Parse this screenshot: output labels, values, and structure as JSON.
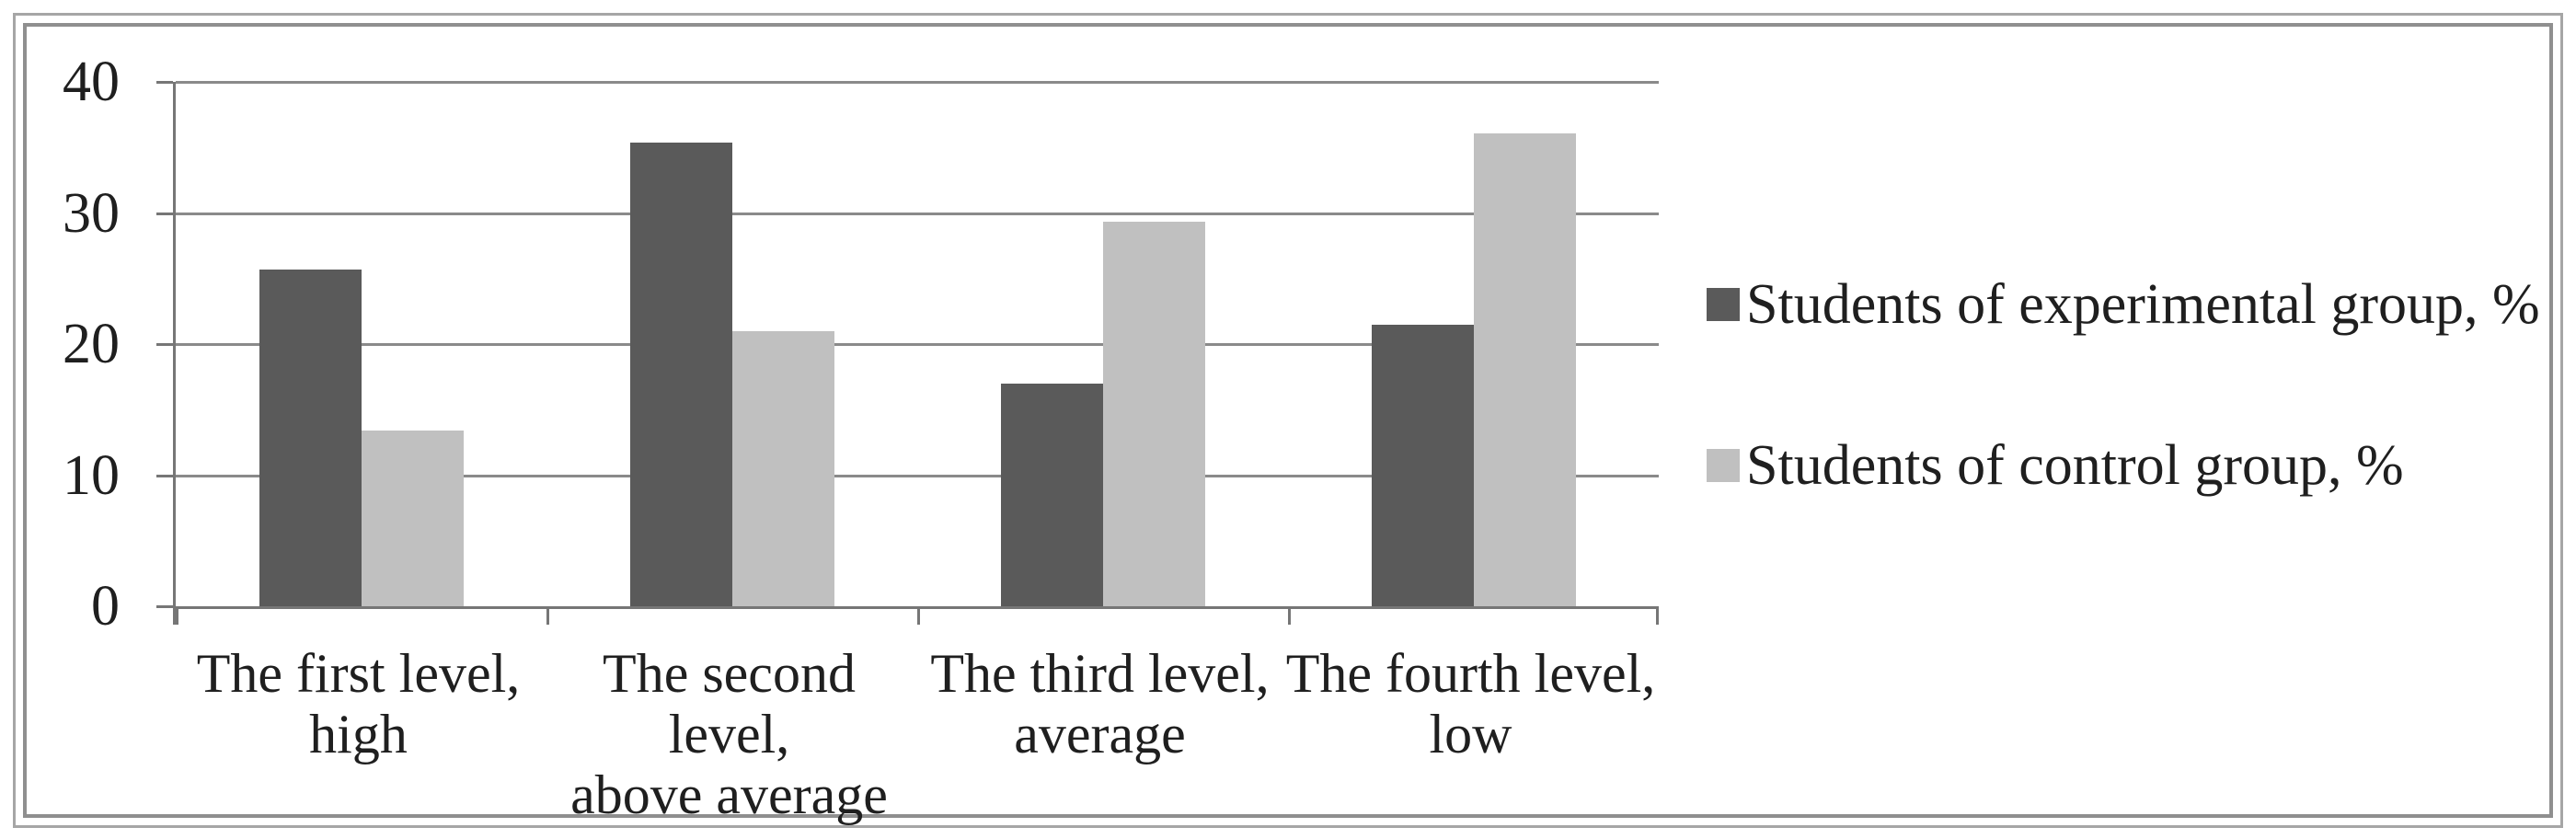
{
  "chart_data": {
    "type": "bar",
    "title": "",
    "xlabel": "",
    "ylabel": "",
    "categories": [
      "The first level,\nhigh",
      "The second level,\nabove average",
      "The third level,\naverage",
      "The fourth level,\nlow"
    ],
    "series": [
      {
        "name": "Students of experimental group, %",
        "color": "#5a5a5a",
        "values": [
          25.7,
          35.4,
          17.0,
          21.5
        ]
      },
      {
        "name": "Students of control group, %",
        "color": "#c0c0c0",
        "values": [
          13.4,
          21.0,
          29.3,
          36.1
        ]
      }
    ],
    "ylim": [
      0,
      40
    ],
    "yticks": [
      0,
      10,
      20,
      30,
      40
    ],
    "grid": true,
    "legend_position": "right",
    "colors": {
      "axis": "#767676",
      "gridline": "#8a8a8a",
      "text": "#1f1f1f",
      "frame": "#9a9a9a",
      "background": "#ffffff"
    }
  }
}
